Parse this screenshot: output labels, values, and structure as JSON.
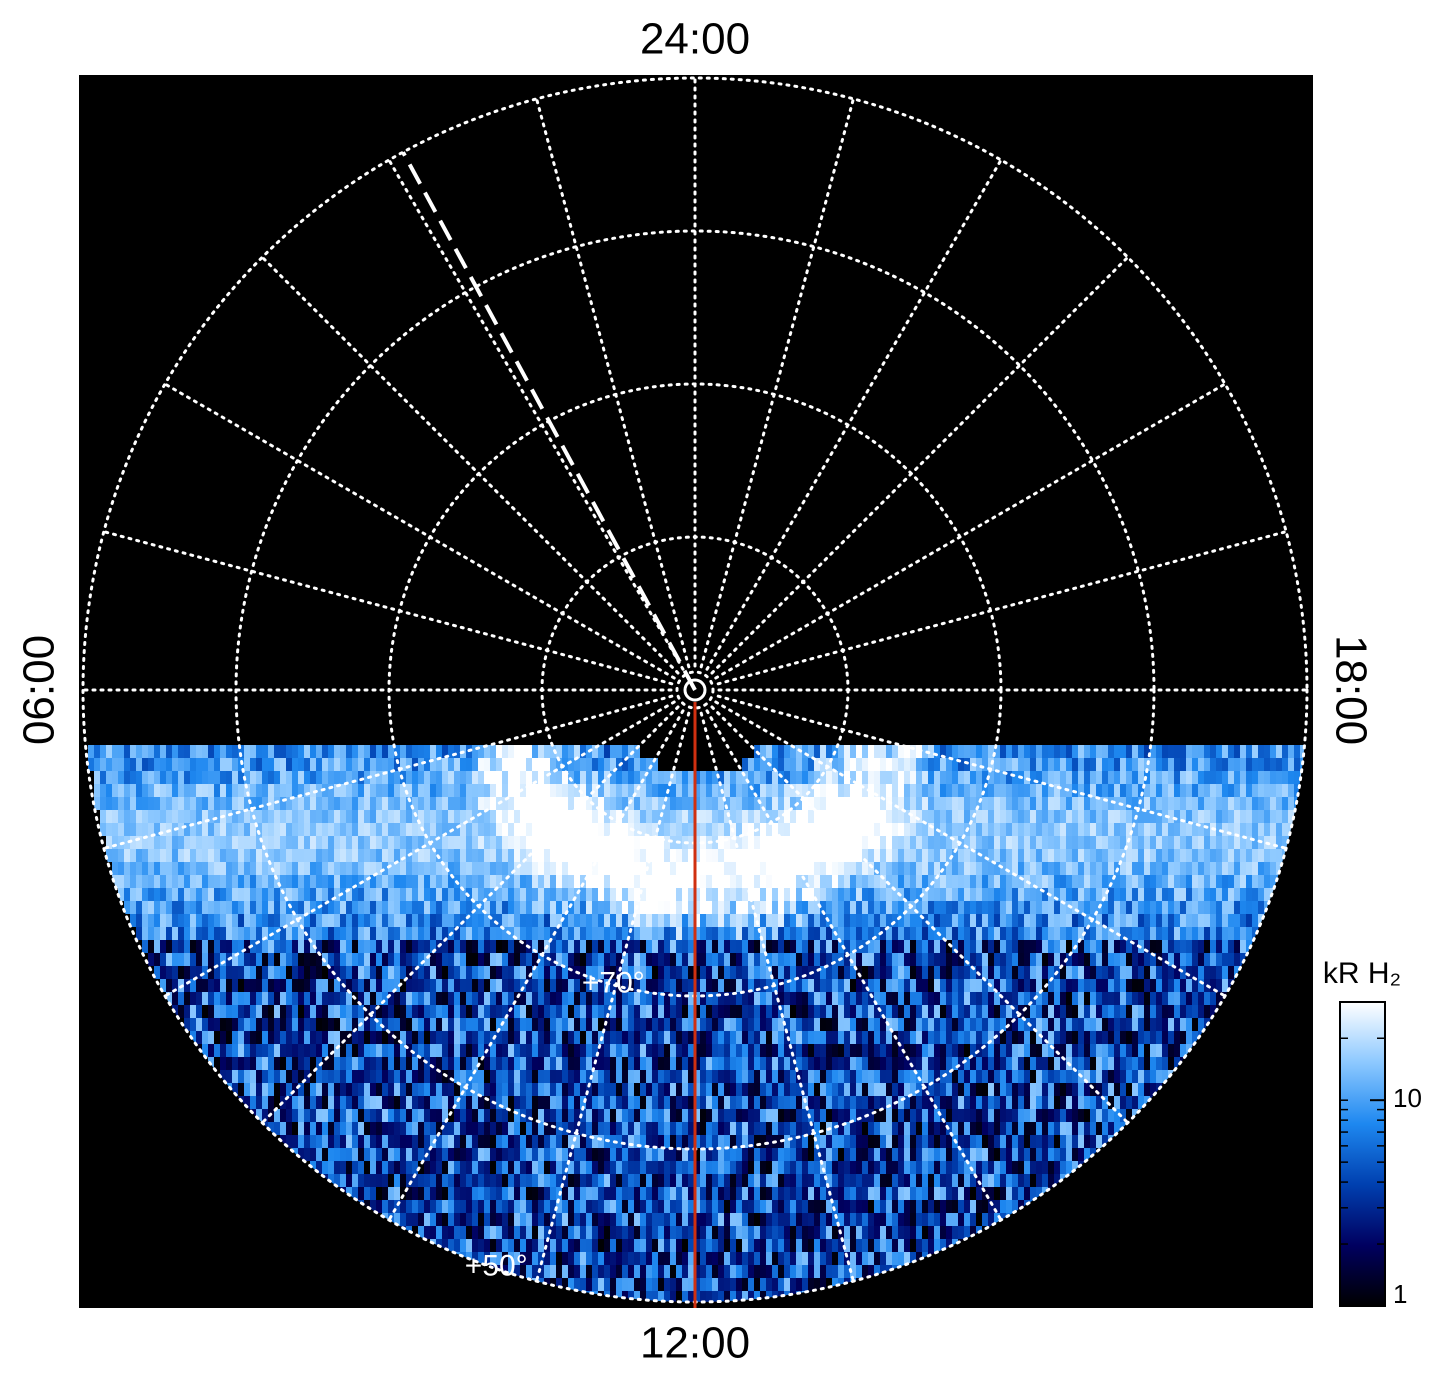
{
  "chart_data": {
    "type": "polar-image",
    "time_labels": {
      "top": "24:00",
      "bottom": "12:00",
      "left": "06:00",
      "right": "18:00"
    },
    "rlim": [
      90,
      50
    ],
    "rings": [
      80,
      70,
      60,
      50
    ],
    "rtick_labels": [
      {
        "value": 70,
        "label": "+70°"
      },
      {
        "value": 50,
        "label": "+50°"
      }
    ],
    "meridians_lt": [
      0,
      1,
      2,
      3,
      4,
      5,
      6,
      7,
      8,
      9,
      10,
      11,
      12,
      13,
      14,
      15,
      16,
      17,
      18,
      19,
      20,
      21,
      22,
      23
    ],
    "dashed_line_lt": 1.9,
    "red_line_lt": 12,
    "colorbar": {
      "label": "kR H₂",
      "scale": "log",
      "lim": [
        1,
        30
      ],
      "ticks": [
        1,
        10
      ],
      "colors": [
        "#000000",
        "#000060",
        "#0040b0",
        "#1e88f0",
        "#8cc8ff",
        "#ffffff"
      ]
    }
  }
}
